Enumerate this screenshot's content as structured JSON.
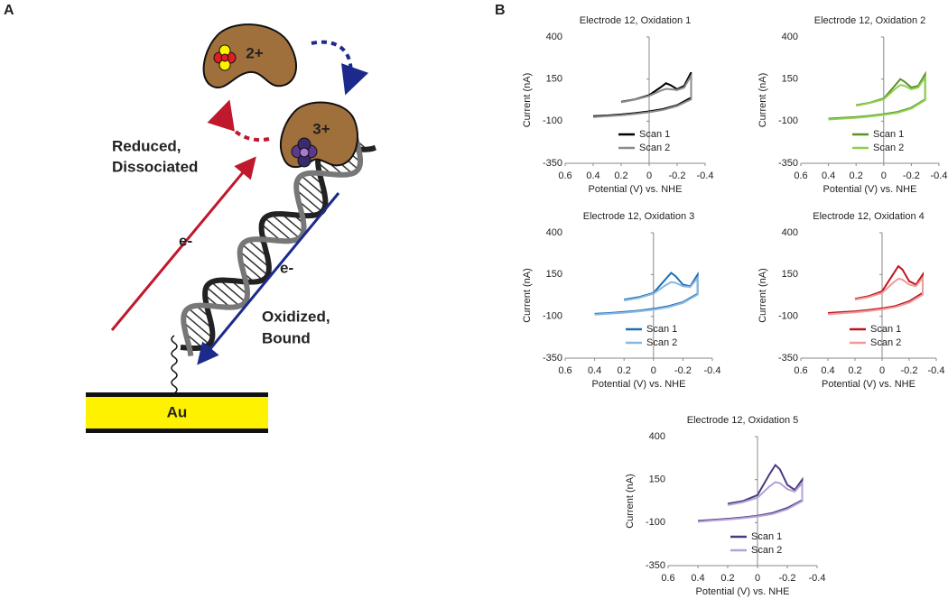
{
  "panel_a": {
    "label": "A",
    "charge_reduced": "2+",
    "charge_oxidized": "3+",
    "reduced_line1": "Reduced,",
    "reduced_line2": "Dissociated",
    "electron_up": "e-",
    "electron_down": "e-",
    "oxidized_line1": "Oxidized,",
    "oxidized_line2": "Bound",
    "electrode": "Au"
  },
  "panel_b": {
    "label": "B"
  },
  "chart_data": [
    {
      "type": "line",
      "title": "Electrode  12, Oxidation 1",
      "xlabel": "Potential (V) vs. NHE",
      "ylabel": "Current (nA)",
      "xlim": [
        0.6,
        -0.4
      ],
      "xticks": [
        0.6,
        0.4,
        0.2,
        0,
        -0.2,
        -0.4
      ],
      "ylim": [
        -350,
        400
      ],
      "yticks": [
        -350,
        -100,
        150,
        400
      ],
      "x": [
        0.4,
        0.3,
        0.2,
        0.1,
        0,
        -0.1,
        -0.2,
        -0.3,
        -0.3,
        -0.25,
        -0.2,
        -0.15,
        -0.12,
        -0.08,
        0,
        0.1,
        0.2
      ],
      "series": [
        {
          "name": "Scan 1",
          "color": "#000000",
          "values": [
            -70,
            -66,
            -60,
            -52,
            -42,
            -28,
            -5,
            40,
            190,
            110,
            90,
            115,
            125,
            100,
            55,
            30,
            15
          ]
        },
        {
          "name": "Scan 2",
          "color": "#8c8c8c",
          "values": [
            -75,
            -70,
            -65,
            -57,
            -47,
            -33,
            -10,
            30,
            170,
            100,
            85,
            90,
            92,
            80,
            50,
            28,
            12
          ]
        }
      ]
    },
    {
      "type": "line",
      "title": "Electrode 12, Oxidation 2",
      "xlabel": "Potential (V) vs. NHE",
      "ylabel": "Current (nA)",
      "xlim": [
        0.6,
        -0.4
      ],
      "xticks": [
        0.6,
        0.4,
        0.2,
        0,
        -0.2,
        -0.4
      ],
      "ylim": [
        -350,
        400
      ],
      "yticks": [
        -350,
        -100,
        150,
        400
      ],
      "x": [
        0.4,
        0.3,
        0.2,
        0.1,
        0,
        -0.1,
        -0.2,
        -0.3,
        -0.3,
        -0.25,
        -0.2,
        -0.15,
        -0.12,
        -0.08,
        0,
        0.1,
        0.2
      ],
      "series": [
        {
          "name": "Scan 1",
          "color": "#5e8f2a",
          "values": [
            -85,
            -80,
            -75,
            -68,
            -58,
            -45,
            -20,
            30,
            180,
            110,
            100,
            135,
            150,
            110,
            35,
            10,
            -5
          ]
        },
        {
          "name": "Scan 2",
          "color": "#8fd14f",
          "values": [
            -90,
            -85,
            -80,
            -72,
            -62,
            -50,
            -25,
            25,
            160,
            100,
            90,
            110,
            115,
            90,
            30,
            8,
            -8
          ]
        }
      ]
    },
    {
      "type": "line",
      "title": "Electrode 12, Oxidation 3",
      "xlabel": "Potential (V) vs. NHE",
      "ylabel": "Current (nA)",
      "xlim": [
        0.6,
        -0.4
      ],
      "xticks": [
        0.6,
        0.4,
        0.2,
        0,
        -0.2,
        -0.4
      ],
      "ylim": [
        -350,
        400
      ],
      "yticks": [
        -350,
        -100,
        150,
        400
      ],
      "x": [
        0.4,
        0.3,
        0.2,
        0.1,
        0,
        -0.1,
        -0.2,
        -0.3,
        -0.3,
        -0.25,
        -0.2,
        -0.15,
        -0.12,
        -0.08,
        0,
        0.1,
        0.2
      ],
      "series": [
        {
          "name": "Scan 1",
          "color": "#1f6eb5",
          "values": [
            -85,
            -80,
            -74,
            -66,
            -55,
            -40,
            -15,
            35,
            150,
            80,
            90,
            140,
            160,
            120,
            40,
            15,
            0
          ]
        },
        {
          "name": "Scan 2",
          "color": "#8ab8e0",
          "values": [
            -90,
            -84,
            -78,
            -70,
            -60,
            -45,
            -20,
            30,
            130,
            75,
            80,
            100,
            105,
            85,
            35,
            10,
            -5
          ]
        }
      ]
    },
    {
      "type": "line",
      "title": "Electrode 12, Oxidation 4",
      "xlabel": "Potential (V) vs. NHE",
      "ylabel": "Current (nA)",
      "xlim": [
        0.6,
        -0.4
      ],
      "xticks": [
        0.6,
        0.4,
        0.2,
        0,
        -0.2,
        -0.4
      ],
      "ylim": [
        -350,
        400
      ],
      "yticks": [
        -350,
        -100,
        150,
        400
      ],
      "x": [
        0.4,
        0.3,
        0.2,
        0.1,
        0,
        -0.1,
        -0.2,
        -0.3,
        -0.3,
        -0.25,
        -0.2,
        -0.15,
        -0.12,
        -0.08,
        0,
        0.1,
        0.2
      ],
      "series": [
        {
          "name": "Scan 1",
          "color": "#c0141e",
          "values": [
            -80,
            -75,
            -70,
            -62,
            -52,
            -38,
            -10,
            40,
            150,
            90,
            110,
            180,
            200,
            150,
            50,
            20,
            5
          ]
        },
        {
          "name": "Scan 2",
          "color": "#ee9a9a",
          "values": [
            -88,
            -82,
            -76,
            -68,
            -58,
            -44,
            -18,
            30,
            130,
            80,
            90,
            120,
            125,
            100,
            40,
            15,
            0
          ]
        }
      ]
    },
    {
      "type": "line",
      "title": "Electrode 12, Oxidation 5",
      "xlabel": "Potential (V) vs. NHE",
      "ylabel": "Current (nA)",
      "xlim": [
        0.6,
        -0.4
      ],
      "xticks": [
        0.6,
        0.4,
        0.2,
        0,
        -0.2,
        -0.4
      ],
      "ylim": [
        -350,
        400
      ],
      "yticks": [
        -350,
        -100,
        150,
        400
      ],
      "x": [
        0.4,
        0.3,
        0.2,
        0.1,
        0,
        -0.1,
        -0.2,
        -0.3,
        -0.3,
        -0.25,
        -0.2,
        -0.15,
        -0.12,
        -0.08,
        0,
        0.1,
        0.2
      ],
      "series": [
        {
          "name": "Scan 1",
          "color": "#4b3a7f",
          "values": [
            -90,
            -84,
            -78,
            -70,
            -60,
            -44,
            -15,
            30,
            150,
            90,
            120,
            210,
            235,
            180,
            60,
            25,
            10
          ]
        },
        {
          "name": "Scan 2",
          "color": "#b3a2d8",
          "values": [
            -95,
            -88,
            -82,
            -74,
            -64,
            -50,
            -22,
            25,
            130,
            80,
            95,
            130,
            135,
            110,
            45,
            18,
            2
          ]
        }
      ]
    }
  ]
}
